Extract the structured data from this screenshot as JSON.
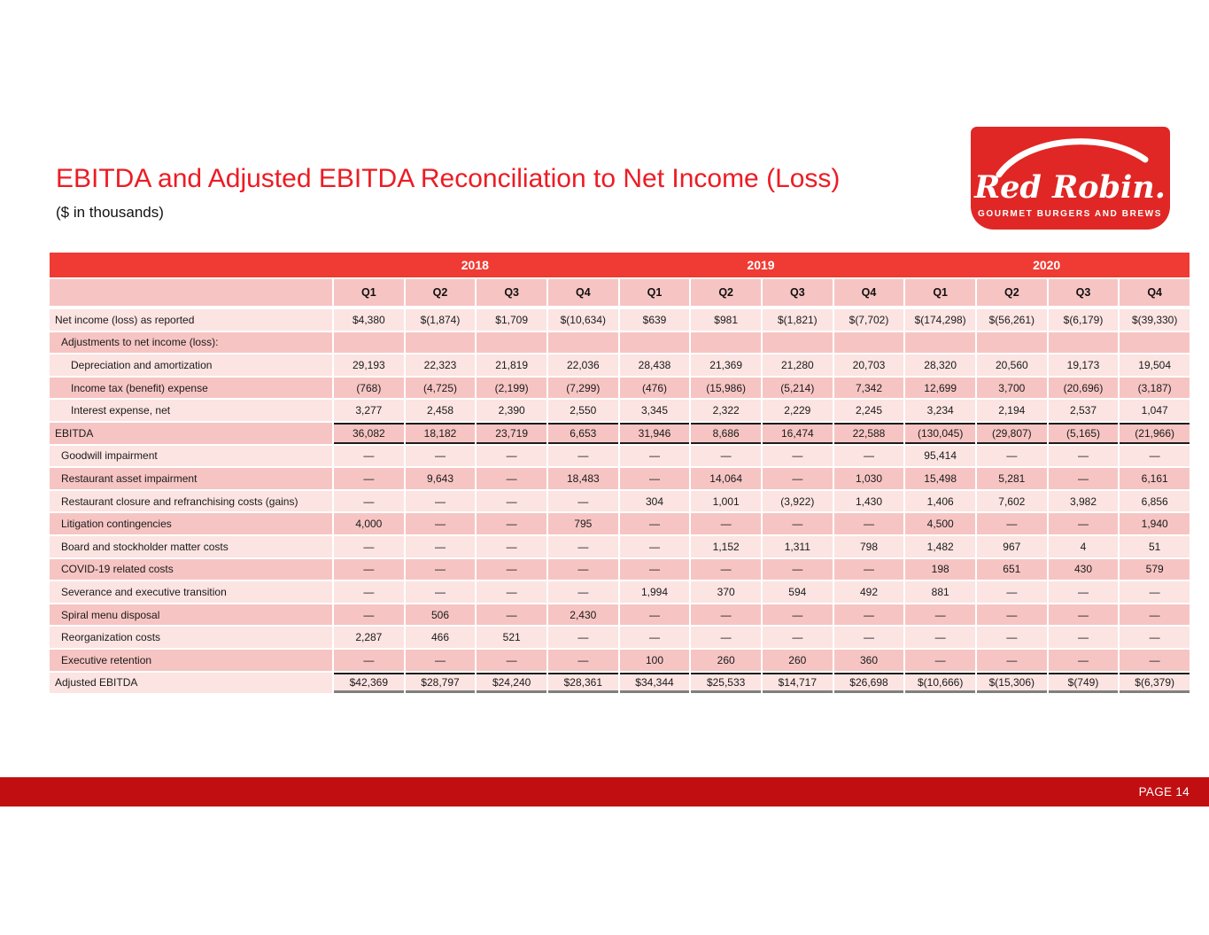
{
  "slide": {
    "title": "EBITDA and Adjusted EBITDA Reconciliation to Net Income (Loss)",
    "subtitle": "($ in thousands)",
    "page_label": "PAGE 14"
  },
  "logo": {
    "brand": "Red Robin.",
    "tagline": "GOURMET BURGERS AND BREWS"
  },
  "colors": {
    "title_red": "#ec1c24",
    "year_band_red": "#ef3b33",
    "footer_red": "#c10e11",
    "logo_red": "#e02725",
    "row_light_pink": "#fbe4e2",
    "row_dark_pink": "#f6c5c3"
  },
  "table": {
    "years": [
      "2018",
      "2019",
      "2020"
    ],
    "quarters": [
      "Q1",
      "Q2",
      "Q3",
      "Q4",
      "Q1",
      "Q2",
      "Q3",
      "Q4",
      "Q1",
      "Q2",
      "Q3",
      "Q4"
    ],
    "rows": [
      {
        "label": "Net income (loss) as reported",
        "indent": 0,
        "style": "normal",
        "values": [
          "$4,380",
          "$(1,874)",
          "$1,709",
          "$(10,634)",
          "$639",
          "$981",
          "$(1,821)",
          "$(7,702)",
          "$(174,298)",
          "$(56,261)",
          "$(6,179)",
          "$(39,330)"
        ]
      },
      {
        "label": "Adjustments to net income (loss):",
        "indent": 1,
        "style": "normal",
        "values": [
          "",
          "",
          "",
          "",
          "",
          "",
          "",
          "",
          "",
          "",
          "",
          ""
        ]
      },
      {
        "label": "Depreciation and amortization",
        "indent": 2,
        "style": "normal",
        "values": [
          "29,193",
          "22,323",
          "21,819",
          "22,036",
          "28,438",
          "21,369",
          "21,280",
          "20,703",
          "28,320",
          "20,560",
          "19,173",
          "19,504"
        ]
      },
      {
        "label": "Income tax (benefit) expense",
        "indent": 2,
        "style": "normal",
        "values": [
          "(768)",
          "(4,725)",
          "(2,199)",
          "(7,299)",
          "(476)",
          "(15,986)",
          "(5,214)",
          "7,342",
          "12,699",
          "3,700",
          "(20,696)",
          "(3,187)"
        ]
      },
      {
        "label": "Interest expense, net",
        "indent": 2,
        "style": "normal",
        "values": [
          "3,277",
          "2,458",
          "2,390",
          "2,550",
          "3,345",
          "2,322",
          "2,229",
          "2,245",
          "3,234",
          "2,194",
          "2,537",
          "1,047"
        ]
      },
      {
        "label": "EBITDA",
        "indent": 0,
        "style": "ebitda",
        "values": [
          "36,082",
          "18,182",
          "23,719",
          "6,653",
          "31,946",
          "8,686",
          "16,474",
          "22,588",
          "(130,045)",
          "(29,807)",
          "(5,165)",
          "(21,966)"
        ]
      },
      {
        "label": "Goodwill impairment",
        "indent": 1,
        "style": "normal",
        "values": [
          "—",
          "—",
          "—",
          "—",
          "—",
          "—",
          "—",
          "—",
          "95,414",
          "—",
          "—",
          "—"
        ]
      },
      {
        "label": "Restaurant asset impairment",
        "indent": 1,
        "style": "normal",
        "values": [
          "—",
          "9,643",
          "—",
          "18,483",
          "—",
          "14,064",
          "—",
          "1,030",
          "15,498",
          "5,281",
          "—",
          "6,161"
        ]
      },
      {
        "label": "Restaurant closure and refranchising costs (gains)",
        "indent": 1,
        "style": "normal",
        "values": [
          "—",
          "—",
          "—",
          "—",
          "304",
          "1,001",
          "(3,922)",
          "1,430",
          "1,406",
          "7,602",
          "3,982",
          "6,856"
        ]
      },
      {
        "label": "Litigation contingencies",
        "indent": 1,
        "style": "normal",
        "values": [
          "4,000",
          "—",
          "—",
          "795",
          "—",
          "—",
          "—",
          "—",
          "4,500",
          "—",
          "—",
          "1,940"
        ]
      },
      {
        "label": "Board and stockholder matter costs",
        "indent": 1,
        "style": "normal",
        "values": [
          "—",
          "—",
          "—",
          "—",
          "—",
          "1,152",
          "1,311",
          "798",
          "1,482",
          "967",
          "4",
          "51"
        ]
      },
      {
        "label": "COVID-19 related costs",
        "indent": 1,
        "style": "normal",
        "values": [
          "—",
          "—",
          "—",
          "—",
          "—",
          "—",
          "—",
          "—",
          "198",
          "651",
          "430",
          "579"
        ]
      },
      {
        "label": "Severance and executive transition",
        "indent": 1,
        "style": "normal",
        "values": [
          "—",
          "—",
          "—",
          "—",
          "1,994",
          "370",
          "594",
          "492",
          "881",
          "—",
          "—",
          "—"
        ]
      },
      {
        "label": "Spiral menu disposal",
        "indent": 1,
        "style": "normal",
        "values": [
          "—",
          "506",
          "—",
          "2,430",
          "—",
          "—",
          "—",
          "—",
          "—",
          "—",
          "—",
          "—"
        ]
      },
      {
        "label": "Reorganization costs",
        "indent": 1,
        "style": "normal",
        "values": [
          "2,287",
          "466",
          "521",
          "—",
          "—",
          "—",
          "—",
          "—",
          "—",
          "—",
          "—",
          "—"
        ]
      },
      {
        "label": "Executive retention",
        "indent": 1,
        "style": "normal",
        "values": [
          "—",
          "—",
          "—",
          "—",
          "100",
          "260",
          "260",
          "360",
          "—",
          "—",
          "—",
          "—"
        ]
      },
      {
        "label": "Adjusted EBITDA",
        "indent": 0,
        "style": "adjusted",
        "values": [
          "$42,369",
          "$28,797",
          "$24,240",
          "$28,361",
          "$34,344",
          "$25,533",
          "$14,717",
          "$26,698",
          "$(10,666)",
          "$(15,306)",
          "$(749)",
          "$(6,379)"
        ]
      }
    ]
  }
}
